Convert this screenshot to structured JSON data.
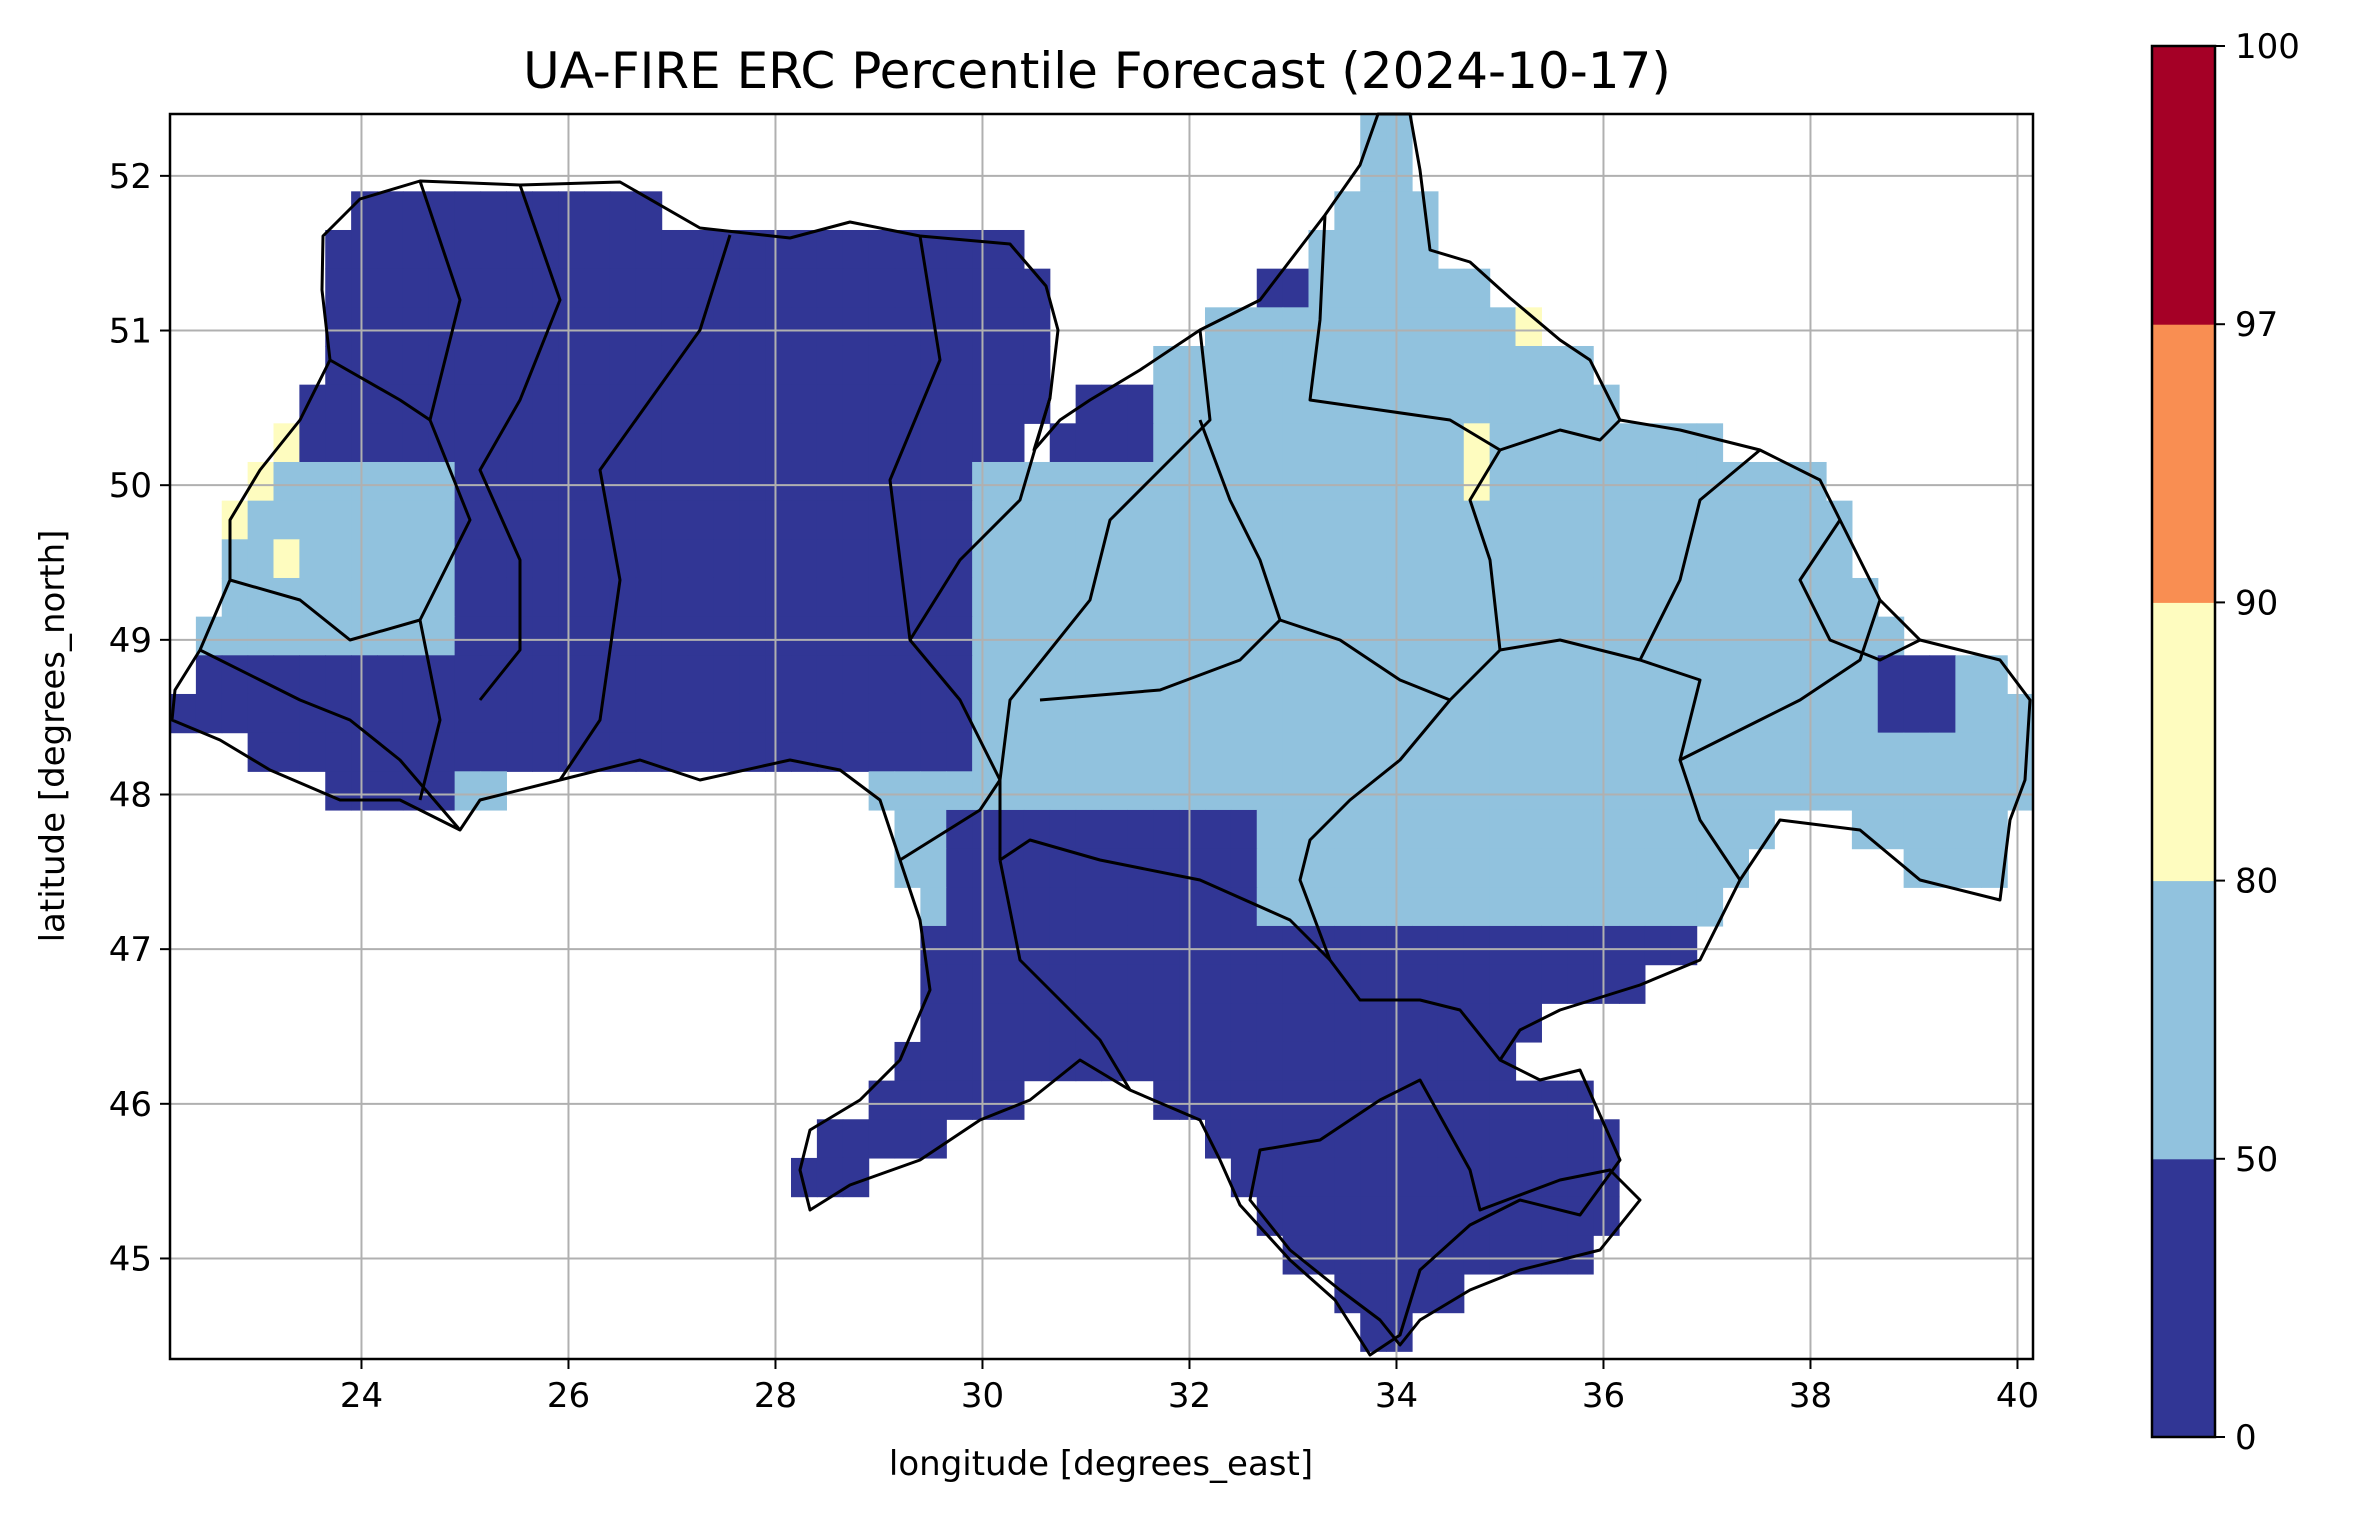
{
  "title": "UA-FIRE ERC Percentile Forecast (2024-10-17)",
  "xlabel": "longitude [degrees_east]",
  "ylabel": "latitude [degrees_north]",
  "map": {
    "lon_range": [
      22.15,
      40.15
    ],
    "lat_range": [
      44.35,
      52.4
    ],
    "grid": true,
    "cell_size_deg": 0.25,
    "lon_ticks": [
      "24",
      "26",
      "28",
      "30",
      "32",
      "34",
      "36",
      "38",
      "40"
    ],
    "lat_ticks": [
      "45",
      "46",
      "47",
      "48",
      "49",
      "50",
      "51",
      "52"
    ]
  },
  "colorbar": {
    "boundaries": [
      "0",
      "50",
      "80",
      "90",
      "97",
      "100"
    ],
    "classes": [
      {
        "range": [
          0,
          50
        ],
        "color": "#313695"
      },
      {
        "range": [
          50,
          80
        ],
        "color": "#91c2de"
      },
      {
        "range": [
          80,
          90
        ],
        "color": "#fefcbf"
      },
      {
        "range": [
          90,
          97
        ],
        "color": "#f98e52"
      },
      {
        "range": [
          97,
          100
        ],
        "color": "#a50026"
      }
    ]
  },
  "regions": {
    "above_90": [],
    "80_90_cells": [
      {
        "lon": 23.25,
        "lat": 50.25
      },
      {
        "lon": 23.0,
        "lat": 50.0
      },
      {
        "lon": 22.75,
        "lat": 49.75
      },
      {
        "lon": 23.25,
        "lat": 49.5
      },
      {
        "lon": 34.75,
        "lat": 50.25
      },
      {
        "lon": 34.75,
        "lat": 50.0
      },
      {
        "lon": 35.25,
        "lat": 51.0
      }
    ]
  }
}
